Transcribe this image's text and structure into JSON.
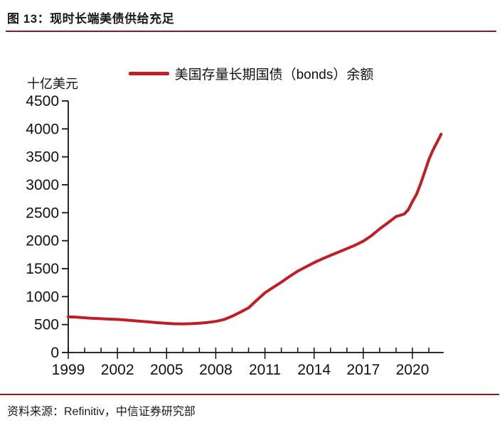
{
  "figure": {
    "title": "图 13：现时长端美债供给充足",
    "source": "资料来源：Refinitiv，中信证券研究部"
  },
  "legend": {
    "label": "美国存量长期国债（bonds）余额"
  },
  "colors": {
    "line": "#c11d25",
    "separator": "#8c1b1e",
    "axis": "#111111",
    "text": "#111111"
  },
  "chart_data": {
    "type": "line",
    "title": "美国存量长期国债（bonds）余额",
    "ylabel_unit": "十亿美元",
    "ylim": [
      0,
      4500
    ],
    "yticks": [
      0,
      500,
      1000,
      1500,
      2000,
      2500,
      3000,
      3500,
      4000,
      4500
    ],
    "xticks_major": [
      1999,
      2002,
      2005,
      2008,
      2011,
      2014,
      2017,
      2020
    ],
    "x_minor_step_years": 1,
    "x_range": [
      1999,
      2021.9
    ],
    "grid": false,
    "legend_position": "top-center",
    "series": [
      {
        "name": "美国存量长期国债（bonds）余额",
        "points": [
          [
            1999.0,
            640
          ],
          [
            1999.5,
            632
          ],
          [
            2000.0,
            622
          ],
          [
            2000.5,
            612
          ],
          [
            2001.0,
            605
          ],
          [
            2001.5,
            598
          ],
          [
            2002.0,
            592
          ],
          [
            2002.5,
            582
          ],
          [
            2003.0,
            570
          ],
          [
            2003.5,
            558
          ],
          [
            2004.0,
            545
          ],
          [
            2004.5,
            533
          ],
          [
            2005.0,
            522
          ],
          [
            2005.5,
            514
          ],
          [
            2006.0,
            512
          ],
          [
            2006.5,
            516
          ],
          [
            2007.0,
            524
          ],
          [
            2007.5,
            538
          ],
          [
            2008.0,
            557
          ],
          [
            2008.5,
            590
          ],
          [
            2009.0,
            650
          ],
          [
            2009.5,
            722
          ],
          [
            2010.0,
            800
          ],
          [
            2010.5,
            935
          ],
          [
            2011.0,
            1068
          ],
          [
            2011.5,
            1165
          ],
          [
            2012.0,
            1258
          ],
          [
            2012.5,
            1360
          ],
          [
            2013.0,
            1455
          ],
          [
            2013.5,
            1532
          ],
          [
            2014.0,
            1608
          ],
          [
            2014.5,
            1675
          ],
          [
            2015.0,
            1738
          ],
          [
            2015.5,
            1798
          ],
          [
            2016.0,
            1858
          ],
          [
            2016.5,
            1920
          ],
          [
            2017.0,
            1992
          ],
          [
            2017.5,
            2090
          ],
          [
            2018.0,
            2212
          ],
          [
            2018.5,
            2320
          ],
          [
            2019.0,
            2432
          ],
          [
            2019.5,
            2478
          ],
          [
            2019.75,
            2555
          ],
          [
            2020.0,
            2700
          ],
          [
            2020.25,
            2830
          ],
          [
            2020.5,
            3020
          ],
          [
            2020.75,
            3230
          ],
          [
            2021.0,
            3450
          ],
          [
            2021.25,
            3620
          ],
          [
            2021.5,
            3760
          ],
          [
            2021.75,
            3905
          ]
        ]
      }
    ]
  }
}
